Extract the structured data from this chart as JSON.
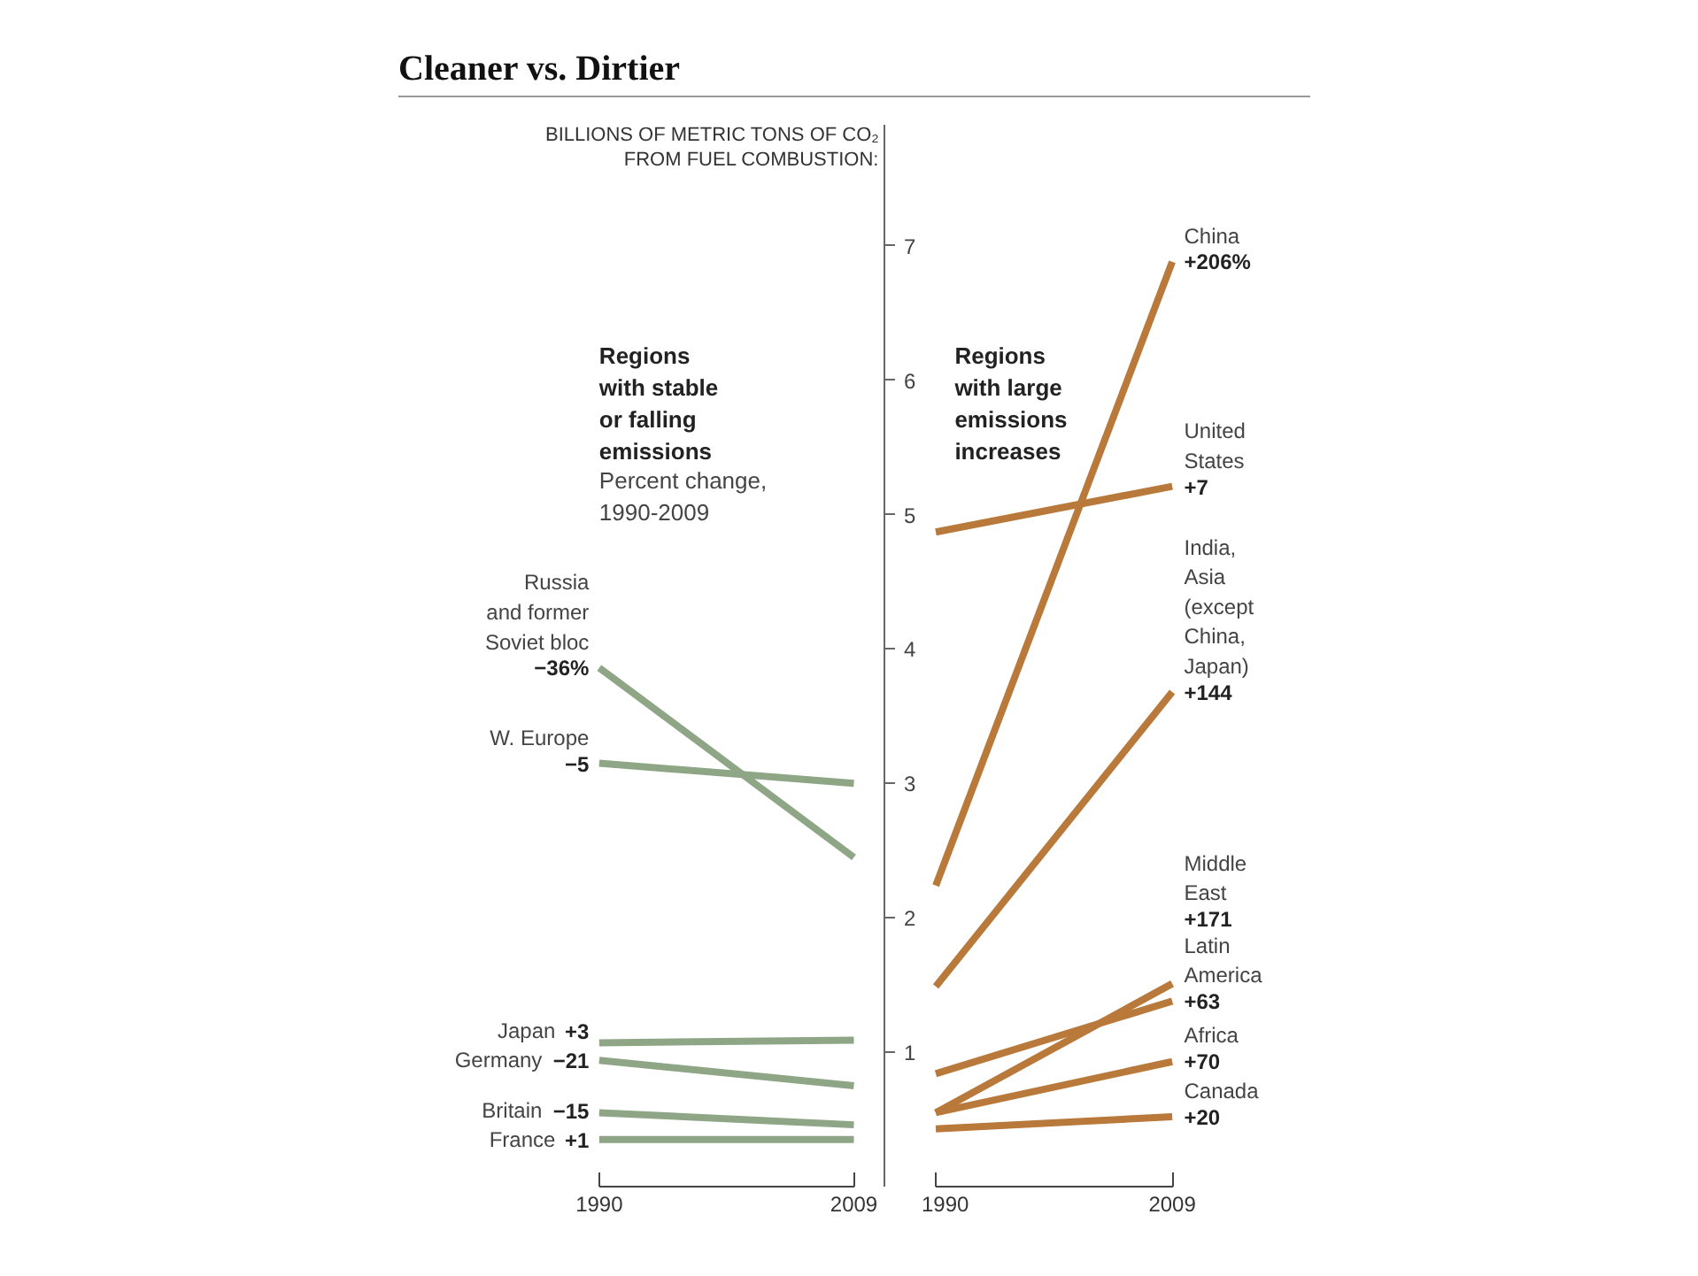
{
  "chart_data": [
    {
      "type": "line",
      "title": "Cleaner vs. Dirtier",
      "ylabel": "BILLIONS OF METRIC TONS OF CO₂\nFROM FUEL COMBUSTION:",
      "categories": [
        "1990",
        "2009"
      ],
      "ylim": [
        0,
        7.9
      ],
      "yticks": [
        1,
        2,
        3,
        4,
        5,
        6,
        7
      ],
      "grid": false,
      "legend": false,
      "series": [
        {
          "name": "Russia\nand former\nSoviet bloc",
          "color": "#8ea686",
          "values": [
            3.86,
            2.45
          ]
        },
        {
          "name": "W. Europe",
          "color": "#8ea686",
          "values": [
            3.15,
            3.0
          ]
        },
        {
          "name": "Japan",
          "color": "#8ea686",
          "values": [
            1.07,
            1.09
          ]
        },
        {
          "name": "Germany",
          "color": "#8ea686",
          "values": [
            0.94,
            0.75
          ]
        },
        {
          "name": "Britain",
          "color": "#8ea686",
          "values": [
            0.55,
            0.46
          ]
        },
        {
          "name": "France",
          "color": "#8ea686",
          "values": [
            0.35,
            0.35
          ]
        }
      ],
      "annotations": [
        "Regions\nwith stable\nor falling\nemissions",
        "Percent change,\n1990-2009",
        {
          "text": "−36%",
          "x": "1990",
          "y": 3.86
        },
        {
          "text": "−5",
          "x": "1990",
          "y": 3.15
        },
        {
          "text": "+3",
          "x": "1990",
          "y": 1.07
        },
        {
          "text": "−21",
          "x": "1990",
          "y": 0.94
        },
        {
          "text": "−15",
          "x": "1990",
          "y": 0.55
        },
        {
          "text": "+1",
          "x": "1990",
          "y": 0.35
        }
      ]
    },
    {
      "type": "line",
      "categories": [
        "1990",
        "2009"
      ],
      "ylim": [
        0,
        7.9
      ],
      "tick_labels": "x",
      "grid": false,
      "legend": false,
      "series": [
        {
          "name": "China",
          "color": "#b8793a",
          "values": [
            2.24,
            6.88
          ]
        },
        {
          "name": "United\nStates",
          "color": "#b8793a",
          "values": [
            4.87,
            5.21
          ]
        },
        {
          "name": "India,\nAsia\n(except\nChina,\nJapan)",
          "color": "#b8793a",
          "values": [
            1.49,
            3.68
          ]
        },
        {
          "name": "Latin\nAmerica",
          "color": "#b8793a",
          "values": [
            0.84,
            1.38
          ]
        },
        {
          "name": "Middle\nEast",
          "color": "#b8793a",
          "values": [
            0.55,
            1.51
          ]
        },
        {
          "name": "Africa",
          "color": "#b8793a",
          "values": [
            0.55,
            0.93
          ]
        },
        {
          "name": "Canada",
          "color": "#b8793a",
          "values": [
            0.43,
            0.52
          ]
        }
      ],
      "annotations": [
        "Regions\nwith large\nemissions\nincreases",
        {
          "text": "+206%",
          "x": "2009",
          "y": 6.88
        },
        {
          "text": "+7",
          "x": "2009",
          "y": 5.21
        },
        {
          "text": "+144",
          "x": "2009",
          "y": 3.68
        },
        {
          "text": "+63",
          "x": "2009",
          "y": 1.38
        },
        {
          "text": "+171",
          "x": "2009",
          "y": 1.51
        },
        {
          "text": "+70",
          "x": "2009",
          "y": 0.93
        },
        {
          "text": "+20",
          "x": "2009",
          "y": 0.52
        }
      ]
    }
  ]
}
